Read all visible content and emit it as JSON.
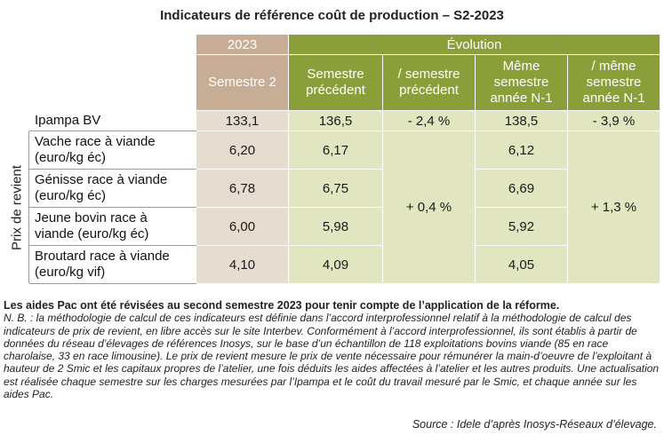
{
  "title": "Indicateurs de référence coût de production – S2-2023",
  "header": {
    "year": "2023",
    "evolution": "Évolution",
    "col_sem2_l1": "Semestre 2",
    "col_prev_l1": "Semestre",
    "col_prev_l2": "précédent",
    "col_vsprev_l1": "/ semestre",
    "col_vsprev_l2": "précédent",
    "col_same_l1": "Même",
    "col_same_l2": "semestre",
    "col_same_l3": "année N-1",
    "col_vssame_l1": "/ même",
    "col_vssame_l2": "semestre",
    "col_vssame_l3": "année N-1"
  },
  "ipampa": {
    "label": "Ipampa BV",
    "sem2": "133,1",
    "prev": "136,5",
    "vs_prev": "- 2,4 %",
    "same": "138,5",
    "vs_same": "- 3,9 %"
  },
  "side_label": "Prix de revient",
  "rows": [
    {
      "l1": "Vache race à viande",
      "l2": "(euro/kg éc)",
      "sem2": "6,20",
      "prev": "6,17",
      "same": "6,12"
    },
    {
      "l1": "Génisse race à viande",
      "l2": "(euro/kg éc)",
      "sem2": "6,78",
      "prev": "6,75",
      "same": "6,69"
    },
    {
      "l1": "Jeune bovin race à",
      "l2": "viande (euro/kg éc)",
      "sem2": "6,00",
      "prev": "5,98",
      "same": "5,92"
    },
    {
      "l1": "Broutard race à viande",
      "l2": "(euro/kg vif)",
      "sem2": "4,10",
      "prev": "4,09",
      "same": "4,05"
    }
  ],
  "merged": {
    "vs_prev": "+ 0,4 %",
    "vs_same": "+ 1,3 %"
  },
  "notes": {
    "bold": "Les aides Pac ont été révisées au second semestre 2023 pour tenir compte de l’application de la réforme.",
    "italic": "N. B. : la méthodologie de calcul de ces indicateurs est définie dans l’accord interprofessionnel relatif à la méthodologie de calcul des indicateurs de prix de revient, en libre accès sur le site Interbev. Conformément à l’accord interprofessionnel, ils sont établis à partir de données du réseau d’élevages de références Inosys, sur le base d’un échantillon de 118 exploitations bovins viande (85 en race charolaise, 33 en race limousine). Le prix de revient mesure le prix de vente nécessaire pour rémunérer la main-d’oeuvre de l’exploitant à hauteur de 2 Smic et les capitaux propres de l’atelier, une fois déduits les aides affectées à l’atelier et les autres produits. Une actualisation est réalisée chaque semestre sur les charges mesurées par l’Ipampa et le coût du travail mesuré par le Smic, et chaque année sur les aides Pac.",
    "source": "Source : Idele d’après Inosys-Réseaux d’élevage."
  },
  "colors": {
    "brown_header": "#c7ad96",
    "green_header": "#8a9f3a",
    "brown_cell": "#e6dccf",
    "green_cell": "#e1e6c0"
  }
}
